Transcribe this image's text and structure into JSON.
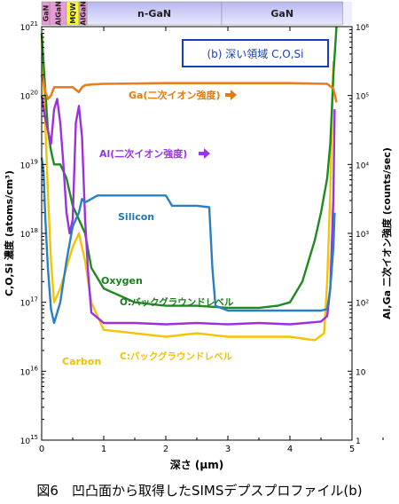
{
  "chart_data": {
    "type": "line",
    "title": "",
    "xlabel": "深さ (μm)",
    "ylabel_left": "C,O,Si 濃度 (atoms/cm³)",
    "ylabel_right": "Al,Ga 二次イオン強度 (counts/sec)",
    "xlim": [
      0,
      5
    ],
    "ylim_left_log10": [
      15,
      21
    ],
    "ylim_right_log10": [
      0,
      6
    ],
    "x_ticks": [
      "0",
      "1",
      "2",
      "3",
      "4",
      "5"
    ],
    "y_left_ticks": [
      {
        "base": "10",
        "exp": "15"
      },
      {
        "base": "10",
        "exp": "16"
      },
      {
        "base": "10",
        "exp": "17"
      },
      {
        "base": "10",
        "exp": "18"
      },
      {
        "base": "10",
        "exp": "19"
      },
      {
        "base": "10",
        "exp": "20"
      },
      {
        "base": "10",
        "exp": "21"
      }
    ],
    "y_right_ticks": [
      "1",
      "10",
      "10²",
      "10³",
      "10⁴",
      "10⁵",
      "10⁶"
    ],
    "layer_bands": [
      {
        "label": "GaN",
        "x0": 0.0,
        "x1": 0.13,
        "color": "#e89ad6",
        "vertical": true
      },
      {
        "label": "AlGaN",
        "x0": 0.13,
        "x1": 0.4,
        "color": "#e89ad6",
        "vertical": true
      },
      {
        "label": "MQW",
        "x0": 0.4,
        "x1": 0.6,
        "color": "#ffff33",
        "vertical": true
      },
      {
        "label": "AlGaN",
        "x0": 0.6,
        "x1": 0.73,
        "color": "#e89ad6",
        "vertical": true
      },
      {
        "label": "n-GaN",
        "x0": 0.73,
        "x1": 2.9,
        "color": "#9a9ae0",
        "vertical": false
      },
      {
        "label": "GaN",
        "x0": 2.9,
        "x1": 4.85,
        "color": "#9a9ae0",
        "vertical": false
      }
    ],
    "legend_box": "(b) 深い領域 C,O,Si",
    "annotations": [
      {
        "id": "ga",
        "text": "Ga(二次イオン強度)",
        "color": "#e07b10"
      },
      {
        "id": "al",
        "text": "Al(二次イオン強度)",
        "color": "#9933ee"
      },
      {
        "id": "silicon",
        "text": "Silicon",
        "color": "#1f77b4"
      },
      {
        "id": "oxygen",
        "text": "Oxygen",
        "color": "#1a7f1a"
      },
      {
        "id": "o_bg",
        "text": "O:バックグラウンドレベル",
        "color": "#1a7f1a"
      },
      {
        "id": "c_bg",
        "text": "C:バックグラウンドレベル",
        "color": "#f2c200"
      },
      {
        "id": "carbon",
        "text": "Carbon",
        "color": "#f2c200"
      }
    ],
    "series": [
      {
        "name": "Ga",
        "color": "#e67e22",
        "axis": "right",
        "x": [
          0,
          0.03,
          0.06,
          0.1,
          0.15,
          0.2,
          0.3,
          0.4,
          0.5,
          0.6,
          0.65,
          0.7,
          0.8,
          1.0,
          2.0,
          3.0,
          4.0,
          4.6,
          4.7,
          4.75
        ],
        "y_log10": [
          5.3,
          5.2,
          5.05,
          4.95,
          5.0,
          5.12,
          5.12,
          5.12,
          5.12,
          5.05,
          5.12,
          5.15,
          5.16,
          5.17,
          5.18,
          5.18,
          5.18,
          5.17,
          5.1,
          4.9
        ]
      },
      {
        "name": "Al",
        "color": "#9b30e0",
        "axis": "right",
        "x": [
          0,
          0.05,
          0.1,
          0.15,
          0.2,
          0.25,
          0.3,
          0.35,
          0.4,
          0.45,
          0.5,
          0.55,
          0.6,
          0.65,
          0.7,
          0.75,
          0.8,
          1.0,
          1.5,
          2.0,
          2.5,
          3.0,
          3.5,
          4.0,
          4.5,
          4.6,
          4.65,
          4.7,
          4.72
        ],
        "y_log10": [
          5.0,
          4.7,
          4.5,
          4.3,
          4.8,
          4.95,
          4.6,
          4.0,
          3.3,
          3.0,
          3.2,
          4.6,
          4.85,
          4.4,
          3.2,
          2.4,
          1.85,
          1.7,
          1.7,
          1.68,
          1.7,
          1.68,
          1.7,
          1.68,
          1.72,
          1.8,
          2.2,
          3.5,
          4.8
        ]
      },
      {
        "name": "Silicon",
        "color": "#2a7fc2",
        "axis": "left",
        "x": [
          0,
          0.03,
          0.06,
          0.1,
          0.15,
          0.2,
          0.3,
          0.4,
          0.5,
          0.6,
          0.65,
          0.7,
          0.8,
          0.9,
          1.0,
          1.5,
          2.0,
          2.1,
          2.5,
          2.7,
          2.75,
          2.8,
          3.0,
          4.0,
          4.5,
          4.6,
          4.65,
          4.7,
          4.72
        ],
        "y_log10": [
          19.1,
          18.9,
          18.2,
          17.5,
          16.9,
          16.7,
          17.0,
          17.6,
          18.1,
          18.3,
          18.5,
          18.45,
          18.5,
          18.55,
          18.55,
          18.55,
          18.55,
          18.4,
          18.4,
          18.38,
          17.5,
          16.95,
          16.88,
          16.88,
          16.88,
          16.9,
          17.2,
          17.8,
          18.3
        ]
      },
      {
        "name": "Oxygen",
        "color": "#1f8a1f",
        "axis": "left",
        "x": [
          0,
          0.05,
          0.1,
          0.15,
          0.2,
          0.3,
          0.4,
          0.5,
          0.6,
          0.7,
          0.8,
          1.0,
          1.5,
          2.0,
          2.5,
          3.0,
          3.5,
          3.8,
          4.0,
          4.2,
          4.3,
          4.4,
          4.5,
          4.6,
          4.65,
          4.7,
          4.75
        ],
        "y_log10": [
          20.9,
          20.2,
          19.5,
          19.2,
          19.0,
          19.0,
          18.8,
          18.4,
          18.2,
          18.0,
          17.5,
          17.2,
          17.0,
          16.95,
          16.95,
          16.92,
          16.92,
          16.95,
          17.0,
          17.3,
          17.6,
          17.9,
          18.3,
          18.8,
          19.3,
          20.3,
          21.0
        ]
      },
      {
        "name": "Carbon",
        "color": "#f5c400",
        "axis": "left",
        "x": [
          0,
          0.05,
          0.1,
          0.15,
          0.2,
          0.3,
          0.4,
          0.5,
          0.6,
          0.7,
          0.8,
          1.0,
          1.5,
          2.0,
          2.5,
          3.0,
          3.5,
          4.0,
          4.4,
          4.55,
          4.6,
          4.65,
          4.7
        ],
        "y_log10": [
          20.9,
          19.8,
          18.6,
          17.6,
          17.0,
          17.2,
          17.5,
          17.8,
          18.0,
          17.6,
          17.0,
          16.6,
          16.55,
          16.5,
          16.55,
          16.5,
          16.5,
          16.5,
          16.45,
          16.55,
          17.3,
          18.6,
          20.5
        ]
      }
    ]
  },
  "caption": "図6　凹凸面から取得したSIMSデプスプロファイル(b)"
}
